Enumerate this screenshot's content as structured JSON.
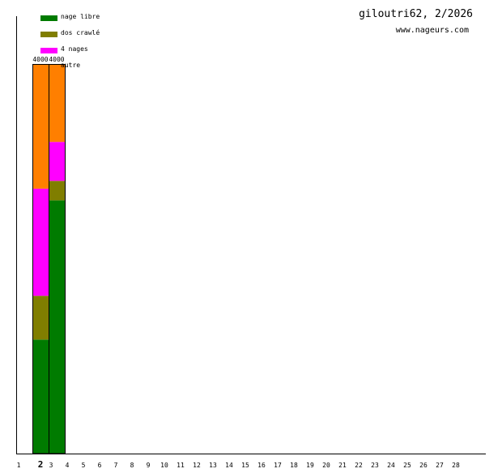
{
  "header": {
    "title": "giloutri62, 2/2026",
    "site": "www.nageurs.com"
  },
  "legend": [
    {
      "label": "nage libre",
      "color": "#007b00"
    },
    {
      "label": "dos crawlé",
      "color": "#807e00"
    },
    {
      "label": "4 nages",
      "color": "#ff00ff"
    },
    {
      "label": "autre",
      "color": "#ff7f00"
    }
  ],
  "chart_data": {
    "type": "bar",
    "stacked": true,
    "categories": [
      "1",
      "2",
      "3",
      "4",
      "5",
      "6",
      "7",
      "8",
      "9",
      "10",
      "11",
      "12",
      "13",
      "14",
      "15",
      "16",
      "17",
      "18",
      "19",
      "20",
      "21",
      "22",
      "23",
      "24",
      "25",
      "26",
      "27",
      "28"
    ],
    "highlighted_category": "2",
    "ylim": [
      0,
      4000
    ],
    "series": [
      {
        "name": "nage libre",
        "color": "#007b00",
        "values": [
          0,
          1170,
          2600,
          0,
          0,
          0,
          0,
          0,
          0,
          0,
          0,
          0,
          0,
          0,
          0,
          0,
          0,
          0,
          0,
          0,
          0,
          0,
          0,
          0,
          0,
          0,
          0,
          0
        ]
      },
      {
        "name": "dos crawlé",
        "color": "#807e00",
        "values": [
          0,
          450,
          200,
          0,
          0,
          0,
          0,
          0,
          0,
          0,
          0,
          0,
          0,
          0,
          0,
          0,
          0,
          0,
          0,
          0,
          0,
          0,
          0,
          0,
          0,
          0,
          0,
          0
        ]
      },
      {
        "name": "4 nages",
        "color": "#ff00ff",
        "values": [
          0,
          1100,
          400,
          0,
          0,
          0,
          0,
          0,
          0,
          0,
          0,
          0,
          0,
          0,
          0,
          0,
          0,
          0,
          0,
          0,
          0,
          0,
          0,
          0,
          0,
          0,
          0,
          0
        ]
      },
      {
        "name": "autre",
        "color": "#ff7f00",
        "values": [
          0,
          1280,
          800,
          0,
          0,
          0,
          0,
          0,
          0,
          0,
          0,
          0,
          0,
          0,
          0,
          0,
          0,
          0,
          0,
          0,
          0,
          0,
          0,
          0,
          0,
          0,
          0,
          0
        ]
      }
    ],
    "totals": [
      "",
      "4000",
      "4000",
      "",
      "",
      "",
      "",
      "",
      "",
      "",
      "",
      "",
      "",
      "",
      "",
      "",
      "",
      "",
      "",
      "",
      "",
      "",
      "",
      "",
      "",
      "",
      "",
      ""
    ],
    "grid": false,
    "legend_position": "top-left"
  }
}
